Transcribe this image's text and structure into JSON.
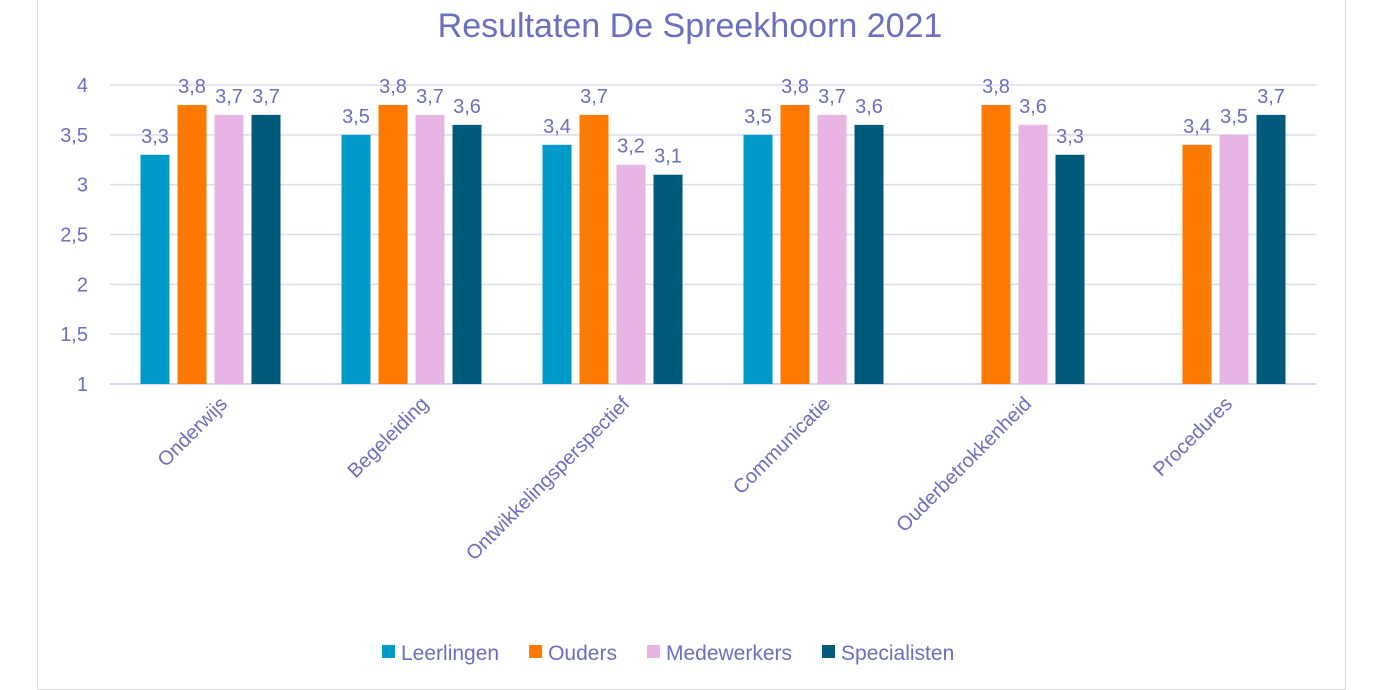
{
  "chart_data": {
    "type": "bar",
    "title": "Resultaten De Spreekhoorn 2021",
    "xlabel": "",
    "ylabel": "",
    "ylim": [
      1,
      4
    ],
    "yticks": [
      "1",
      "1,5",
      "2",
      "2,5",
      "3",
      "3,5",
      "4"
    ],
    "grid": true,
    "legend_position": "bottom",
    "categories": [
      "Onderwijs",
      "Begeleiding",
      "Ontwikkelingsperspectief",
      "Communicatie",
      "Ouderbetrokkenheid",
      "Procedures"
    ],
    "series": [
      {
        "name": "Leerlingen",
        "color": "#009ac9",
        "values": [
          3.3,
          3.5,
          3.4,
          3.5,
          null,
          null
        ]
      },
      {
        "name": "Ouders",
        "color": "#ff7a00",
        "values": [
          3.8,
          3.8,
          3.7,
          3.8,
          3.8,
          3.4
        ]
      },
      {
        "name": "Medewerkers",
        "color": "#e8b4e4",
        "values": [
          3.7,
          3.7,
          3.2,
          3.7,
          3.6,
          3.5
        ]
      },
      {
        "name": "Specialisten",
        "color": "#005b7a",
        "values": [
          3.7,
          3.6,
          3.1,
          3.6,
          3.3,
          3.7
        ]
      }
    ]
  }
}
